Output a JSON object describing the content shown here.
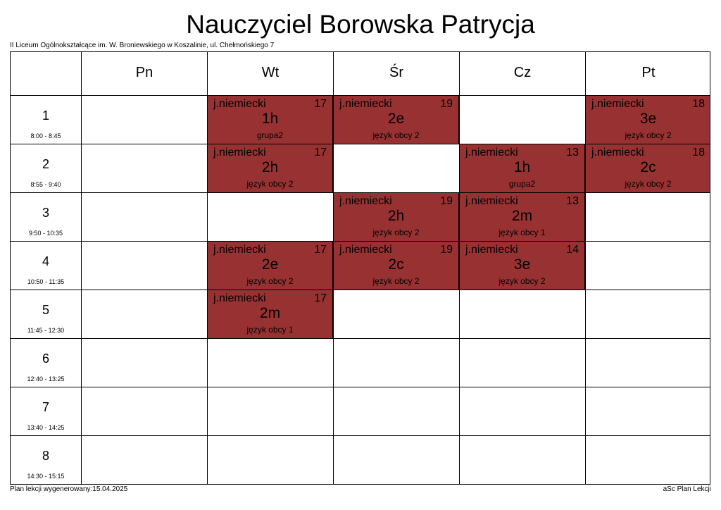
{
  "title": "Nauczyciel Borowska Patrycja",
  "school": "II Liceum Ogólnokształcące im. W. Broniewskiego w Koszalinie, ul. Chełmońskiego 7",
  "days": [
    "Pn",
    "Wt",
    "Śr",
    "Cz",
    "Pt"
  ],
  "periods": [
    {
      "num": "1",
      "time": "8:00 - 8:45"
    },
    {
      "num": "2",
      "time": "8:55 - 9:40"
    },
    {
      "num": "3",
      "time": "9:50 - 10:35"
    },
    {
      "num": "4",
      "time": "10:50 - 11:35"
    },
    {
      "num": "5",
      "time": "11:45 - 12:30"
    },
    {
      "num": "6",
      "time": "12:40 - 13:25"
    },
    {
      "num": "7",
      "time": "13:40 - 14:25"
    },
    {
      "num": "8",
      "time": "14:30 - 15:15"
    }
  ],
  "lesson_color": "#983232",
  "lessons": [
    {
      "day": 1,
      "period": 0,
      "subject": "j.niemiecki",
      "room": "17",
      "class": "1h",
      "group": "grupa2"
    },
    {
      "day": 2,
      "period": 0,
      "subject": "j.niemiecki",
      "room": "19",
      "class": "2e",
      "group": "język obcy 2"
    },
    {
      "day": 4,
      "period": 0,
      "subject": "j.niemiecki",
      "room": "18",
      "class": "3e",
      "group": "język obcy 2"
    },
    {
      "day": 1,
      "period": 1,
      "subject": "j.niemiecki",
      "room": "17",
      "class": "2h",
      "group": "język obcy 2"
    },
    {
      "day": 3,
      "period": 1,
      "subject": "j.niemiecki",
      "room": "13",
      "class": "1h",
      "group": "grupa2"
    },
    {
      "day": 4,
      "period": 1,
      "subject": "j.niemiecki",
      "room": "18",
      "class": "2c",
      "group": "język obcy 2"
    },
    {
      "day": 2,
      "period": 2,
      "subject": "j.niemiecki",
      "room": "19",
      "class": "2h",
      "group": "język obcy 2"
    },
    {
      "day": 3,
      "period": 2,
      "subject": "j.niemiecki",
      "room": "13",
      "class": "2m",
      "group": "język obcy 1"
    },
    {
      "day": 1,
      "period": 3,
      "subject": "j.niemiecki",
      "room": "17",
      "class": "2e",
      "group": "język obcy 2"
    },
    {
      "day": 2,
      "period": 3,
      "subject": "j.niemiecki",
      "room": "19",
      "class": "2c",
      "group": "język obcy 2"
    },
    {
      "day": 3,
      "period": 3,
      "subject": "j.niemiecki",
      "room": "14",
      "class": "3e",
      "group": "język obcy 2"
    },
    {
      "day": 1,
      "period": 4,
      "subject": "j.niemiecki",
      "room": "17",
      "class": "2m",
      "group": "język obcy 1"
    }
  ],
  "footer": {
    "generated": "Plan lekcji wygenerowany:15.04.2025",
    "app": "aSc Plan Lekcji"
  }
}
